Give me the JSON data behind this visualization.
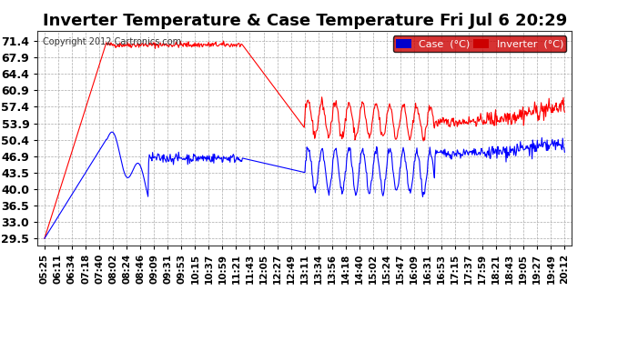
{
  "title": "Inverter Temperature & Case Temperature Fri Jul 6 20:29",
  "copyright": "Copyright 2012 Cartronics.com",
  "legend_case": "Case  (°C)",
  "legend_inverter": "Inverter  (°C)",
  "yticks": [
    29.5,
    33.0,
    36.5,
    40.0,
    43.5,
    46.9,
    50.4,
    53.9,
    57.4,
    60.9,
    64.4,
    67.9,
    71.4
  ],
  "ylim": [
    28.0,
    73.5
  ],
  "xtick_labels": [
    "05:25",
    "06:11",
    "06:34",
    "07:18",
    "07:40",
    "08:02",
    "08:24",
    "08:46",
    "09:09",
    "09:31",
    "09:53",
    "10:15",
    "10:37",
    "10:59",
    "11:21",
    "11:43",
    "12:05",
    "12:27",
    "12:49",
    "13:11",
    "13:34",
    "13:56",
    "14:18",
    "14:40",
    "15:02",
    "15:24",
    "15:47",
    "16:09",
    "16:31",
    "16:53",
    "17:15",
    "17:37",
    "17:59",
    "18:21",
    "18:43",
    "19:05",
    "19:27",
    "19:49",
    "20:12"
  ],
  "bg_color": "#ffffff",
  "grid_color": "#aaaaaa",
  "case_color": "#ff0000",
  "inverter_color": "#0000ff",
  "title_fontsize": 13,
  "axis_fontsize": 7.5,
  "ytick_fontsize": 9,
  "legend_fontsize": 8
}
